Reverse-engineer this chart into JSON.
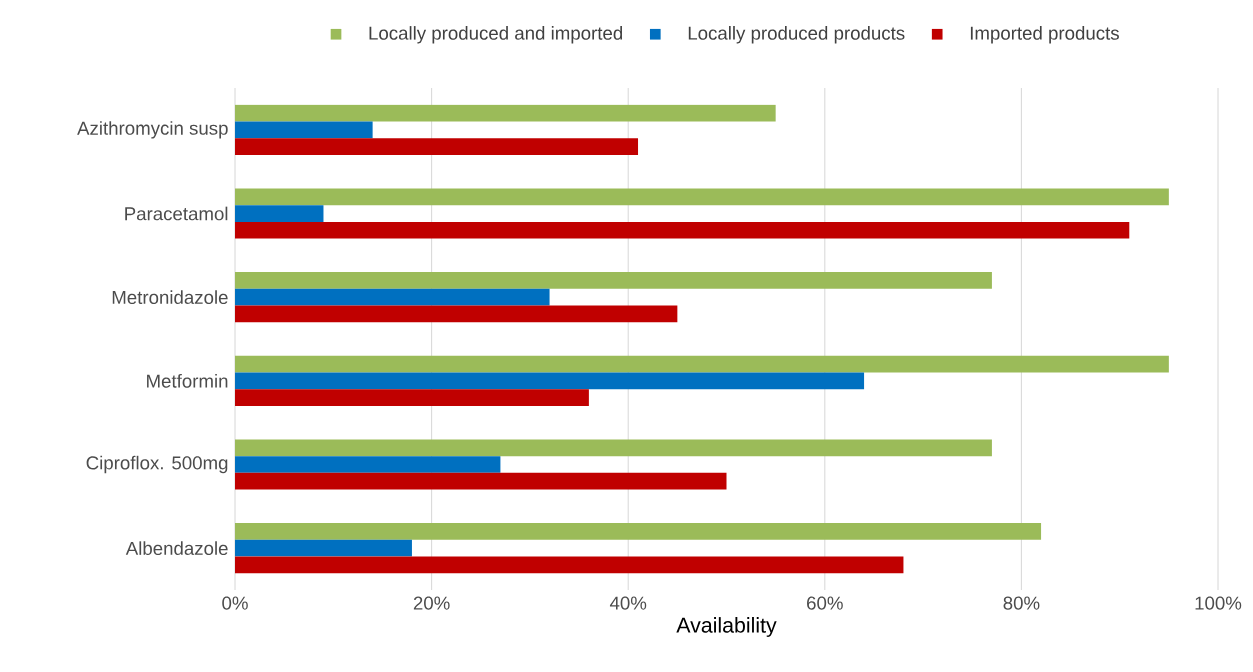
{
  "chart_data": {
    "type": "bar",
    "orientation": "horizontal",
    "xlabel": "Availability",
    "categories": [
      "Azithromycin susp",
      "Paracetamol",
      "Metronidazole",
      "Metformin",
      "Ciproflox. 500mg",
      "Albendazole"
    ],
    "series": [
      {
        "name": "Locally produced and imported",
        "color": "#9bbb59",
        "values": [
          55,
          95,
          77,
          95,
          77,
          82
        ]
      },
      {
        "name": "Locally produced products",
        "color": "#0070c0",
        "values": [
          14,
          9,
          32,
          64,
          27,
          18
        ]
      },
      {
        "name": "Imported products",
        "color": "#c00000",
        "values": [
          41,
          91,
          45,
          36,
          50,
          68
        ]
      }
    ],
    "xlim": [
      0,
      100
    ],
    "xticks": [
      {
        "value": 0,
        "label": "0%"
      },
      {
        "value": 20,
        "label": "20%"
      },
      {
        "value": 40,
        "label": "40%"
      },
      {
        "value": 60,
        "label": "60%"
      },
      {
        "value": 80,
        "label": "80%"
      },
      {
        "value": 100,
        "label": "100%"
      }
    ],
    "grid": "x",
    "legend": "top"
  }
}
